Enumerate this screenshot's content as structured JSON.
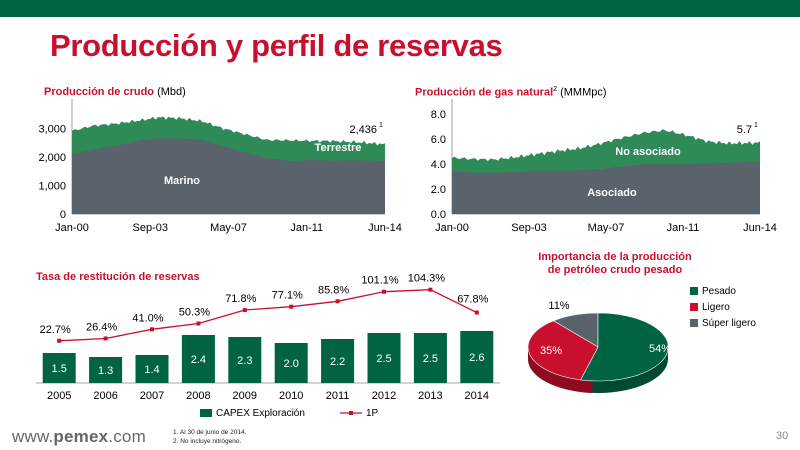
{
  "page": {
    "title": "Producción y perfil de reservas",
    "page_number": "30",
    "footer_url_prefix": "www.",
    "footer_url_brand": "pemex",
    "footer_url_suffix": ".com",
    "notes": [
      "1.  Al 30 de junio de 2014.",
      "2.  No incluye nitrógeno."
    ]
  },
  "colors": {
    "brand_green": "#006341",
    "brand_red": "#c8102e",
    "gray": "#5a626b",
    "light_green": "#2e8b57"
  },
  "chart_data": [
    {
      "type": "area",
      "title_bold": "Producción de crudo",
      "title_unit": " (Mbd)",
      "x_ticks": [
        "Jan-00",
        "Sep-03",
        "May-07",
        "Jan-11",
        "Jun-14"
      ],
      "y_ticks": [
        "3,000",
        "2,000",
        "1,000",
        "0"
      ],
      "ylim": [
        0,
        3500
      ],
      "stacked": true,
      "series": [
        {
          "name": "Marino",
          "color": "#5a626b",
          "x": [
            2000.0,
            2001.0,
            2002.0,
            2003.0,
            2004.0,
            2005.0,
            2006.0,
            2007.0,
            2008.0,
            2009.0,
            2010.0,
            2011.0,
            2012.0,
            2013.0,
            2014.45
          ],
          "values": [
            2100,
            2260,
            2380,
            2560,
            2650,
            2640,
            2600,
            2370,
            2150,
            1950,
            1860,
            1880,
            1870,
            1880,
            1860
          ]
        },
        {
          "name": "Terrestre",
          "color": "#2e8b57",
          "x": [
            2000.0,
            2001.0,
            2002.0,
            2003.0,
            2004.0,
            2005.0,
            2006.0,
            2007.0,
            2008.0,
            2009.0,
            2010.0,
            2011.0,
            2012.0,
            2013.0,
            2014.45
          ],
          "values": [
            810,
            830,
            780,
            700,
            730,
            710,
            650,
            620,
            640,
            640,
            720,
            680,
            680,
            640,
            580
          ]
        }
      ],
      "end_label": "2,436",
      "end_label_sup": "1",
      "series_labels": [
        "Marino",
        "Terrestre"
      ]
    },
    {
      "type": "area",
      "title_bold": "Producción de gas natural",
      "title_sup": "2",
      "title_unit": " (MMMpc)",
      "x_ticks": [
        "Jan-00",
        "Sep-03",
        "May-07",
        "Jan-11",
        "Jun-14"
      ],
      "y_ticks": [
        "8.0",
        "6.0",
        "4.0",
        "2.0",
        "0.0"
      ],
      "ylim": [
        0,
        8
      ],
      "stacked": true,
      "series": [
        {
          "name": "Asociado",
          "color": "#5a626b",
          "x": [
            2000.0,
            2001.0,
            2002.0,
            2003.0,
            2004.0,
            2005.0,
            2006.0,
            2007.0,
            2008.0,
            2009.0,
            2010.0,
            2011.0,
            2012.0,
            2013.0,
            2014.45
          ],
          "values": [
            3.4,
            3.3,
            3.3,
            3.35,
            3.45,
            3.45,
            3.5,
            3.6,
            3.8,
            4.0,
            4.0,
            4.0,
            4.05,
            4.1,
            4.2
          ]
        },
        {
          "name": "No asociado",
          "color": "#2e8b57",
          "x": [
            2000.0,
            2001.0,
            2002.0,
            2003.0,
            2004.0,
            2005.0,
            2006.0,
            2007.0,
            2008.0,
            2009.0,
            2010.0,
            2011.0,
            2012.0,
            2013.0,
            2014.45
          ],
          "values": [
            1.1,
            1.1,
            1.05,
            1.2,
            1.35,
            1.6,
            1.75,
            2.05,
            2.3,
            2.5,
            2.7,
            2.3,
            1.75,
            1.55,
            1.5
          ]
        }
      ],
      "end_label": "5.7",
      "end_label_sup": "1",
      "series_labels": [
        "No asociado",
        "Asociado"
      ]
    },
    {
      "type": "bar",
      "title": "Tasa de restitución de reservas",
      "categories": [
        "2005",
        "2006",
        "2007",
        "2008",
        "2009",
        "2010",
        "2011",
        "2012",
        "2013",
        "2014"
      ],
      "series": [
        {
          "name": "CAPEX Exploración",
          "kind": "bar",
          "color": "#006341",
          "values": [
            1.5,
            1.3,
            1.4,
            2.4,
            2.3,
            2.0,
            2.2,
            2.5,
            2.5,
            2.6
          ],
          "labels": [
            "1.5",
            "1.3",
            "1.4",
            "2.4",
            "2.3",
            "2.0",
            "2.2",
            "2.5",
            "2.5",
            "2.6"
          ]
        },
        {
          "name": "1P",
          "kind": "line",
          "color": "#c8102e",
          "values": [
            22.7,
            26.4,
            41.0,
            50.3,
            71.8,
            77.1,
            85.8,
            101.1,
            104.3,
            67.8
          ],
          "labels": [
            "22.7%",
            "26.4%",
            "41.0%",
            "50.3%",
            "71.8%",
            "77.1%",
            "85.8%",
            "101.1%",
            "104.3%",
            "67.8%"
          ]
        }
      ],
      "bar_max": 3.0,
      "line_max": 115
    },
    {
      "type": "pie",
      "title_lines": [
        "Importancia de la producción",
        "de petróleo crudo pesado"
      ],
      "slices": [
        {
          "name": "Pesado",
          "value": 54,
          "label": "54%",
          "color": "#006341"
        },
        {
          "name": "Ligero",
          "value": 35,
          "label": "35%",
          "color": "#c8102e"
        },
        {
          "name": "Súper ligero",
          "value": 11,
          "label": "11%",
          "color": "#5a626b"
        }
      ]
    }
  ]
}
